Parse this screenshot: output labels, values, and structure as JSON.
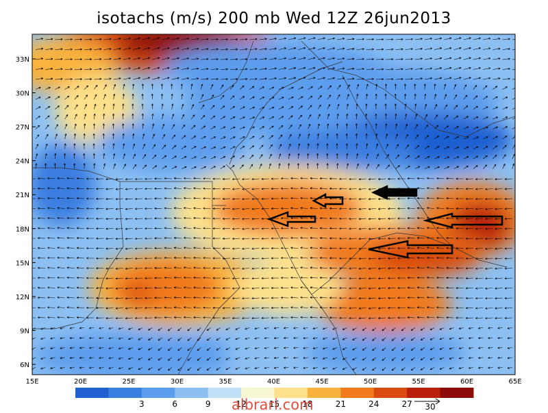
{
  "title": "isotachs (m/s) 200 mb Wed 12Z 26jun2013",
  "watermark": "albrari.com",
  "lat_labels": [
    "6N",
    "9N",
    "12N",
    "15N",
    "18N",
    "21N",
    "24N",
    "27N",
    "30N",
    "33N"
  ],
  "lon_labels": [
    "15E",
    "20E",
    "25E",
    "30E",
    "35E",
    "40E",
    "45E",
    "50E",
    "55E",
    "60E",
    "65E"
  ],
  "colorbar": {
    "colors": [
      "#1f5fd0",
      "#3a7ee0",
      "#5d9ded",
      "#8cc0f3",
      "#c0e0f8",
      "#f6f6d2",
      "#fde08a",
      "#f9b23e",
      "#f07a1c",
      "#d84a10",
      "#b8200c",
      "#8c0c0a"
    ],
    "labels": [
      "3",
      "6",
      "9",
      "12",
      "15",
      "18",
      "21",
      "24",
      "27"
    ],
    "arrow_ref": "30"
  },
  "map_colors": {
    "c3": "#1f5fd0",
    "c6": "#3a7ee0",
    "c9": "#5d9ded",
    "c12": "#8cc0f3",
    "c15": "#c0e0f8",
    "c18": "#f6f6d2",
    "c21": "#fde08a",
    "c24": "#f9b23e",
    "c27": "#f07a1c",
    "c30": "#d84a10",
    "c33": "#b8200c",
    "c36": "#8c0c0a"
  }
}
